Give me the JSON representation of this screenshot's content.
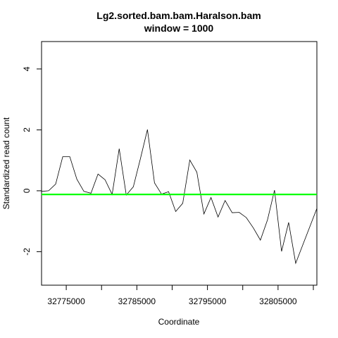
{
  "chart_data": {
    "type": "line",
    "title": "Lg2.sorted.bam.bam.Haralson.bam",
    "subtitle": "window = 1000",
    "xlabel": "Coordinate",
    "ylabel": "Standardized read count",
    "xlim": [
      32771500,
      32810500
    ],
    "ylim": [
      -3.1,
      4.9
    ],
    "x_ticks": [
      32770000,
      32775000,
      32780000,
      32785000,
      32790000,
      32795000,
      32800000,
      32805000,
      32810000
    ],
    "x_tick_labels": [
      {
        "value": 32775000,
        "label": "32775000"
      },
      {
        "value": 32785000,
        "label": "32785000"
      },
      {
        "value": 32795000,
        "label": "32795000"
      },
      {
        "value": 32805000,
        "label": "32805000"
      }
    ],
    "y_ticks": [
      {
        "value": -2,
        "label": "-2"
      },
      {
        "value": 0,
        "label": "0"
      },
      {
        "value": 2,
        "label": "2"
      },
      {
        "value": 4,
        "label": "4"
      }
    ],
    "grid": false,
    "series": [
      {
        "color": "#000000",
        "x": [
          32771500,
          32772500,
          32773500,
          32774500,
          32775500,
          32776500,
          32777500,
          32778500,
          32779500,
          32780500,
          32781500,
          32782500,
          32783500,
          32784500,
          32785500,
          32786500,
          32787500,
          32788500,
          32789500,
          32790500,
          32791500,
          32792500,
          32793500,
          32794500,
          32795500,
          32796500,
          32797500,
          32798500,
          32799500,
          32800500,
          32801500,
          32802500,
          32803500,
          32804500,
          32805500,
          32806500,
          32807500,
          32808500,
          32809500,
          32810500
        ],
        "values": [
          -0.02,
          0.0,
          0.22,
          1.12,
          1.12,
          0.38,
          -0.02,
          -0.08,
          0.55,
          0.36,
          -0.12,
          1.38,
          -0.14,
          0.13,
          1.05,
          2.01,
          0.26,
          -0.11,
          -0.03,
          -0.68,
          -0.41,
          1.01,
          0.61,
          -0.76,
          -0.22,
          -0.86,
          -0.32,
          -0.72,
          -0.71,
          -0.88,
          -1.22,
          -1.62,
          -0.96,
          0.02,
          -1.99,
          -1.04,
          -2.38,
          -1.78,
          -1.18,
          -0.58
        ]
      },
      {
        "color": "#00ff00",
        "x": [
          32771500,
          32810500
        ],
        "values": [
          -0.12,
          -0.12
        ]
      }
    ],
    "tail_value": -1.36
  }
}
